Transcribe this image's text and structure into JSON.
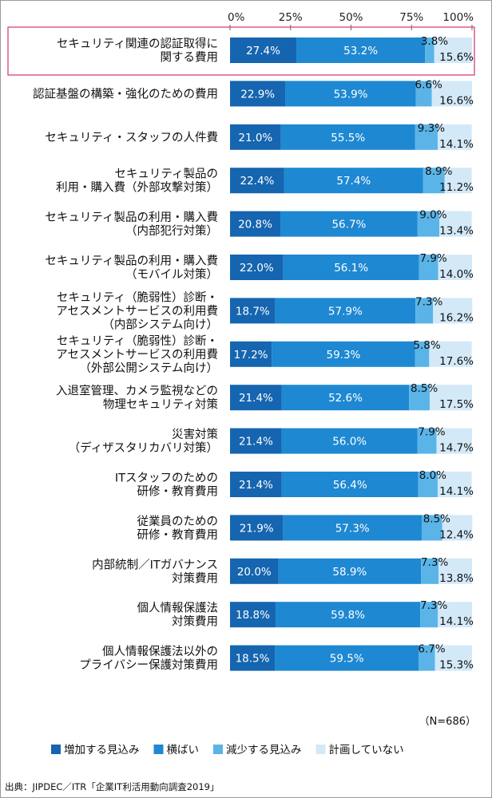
{
  "chart_data": {
    "type": "bar",
    "orientation": "horizontal",
    "stacked": true,
    "percent_scale": true,
    "xlim": [
      0,
      100
    ],
    "x_ticks": [
      "0%",
      "25%",
      "50%",
      "75%",
      "100%"
    ],
    "grid": false,
    "legend_position": "bottom",
    "categories": [
      [
        "セキュリティ関連の認証取得に",
        "関する費用"
      ],
      [
        "認証基盤の構築・強化のための費用"
      ],
      [
        "セキュリティ・スタッフの人件費"
      ],
      [
        "セキュリティ製品の",
        "利用・購入費（外部攻撃対策）"
      ],
      [
        "セキュリティ製品の利用・購入費",
        "（内部犯行対策）"
      ],
      [
        "セキュリティ製品の利用・購入費",
        "（モバイル対策）"
      ],
      [
        "セキュリティ（脆弱性）診断・",
        "アセスメントサービスの利用費",
        "（内部システム向け）"
      ],
      [
        "セキュリティ（脆弱性）診断・",
        "アセスメントサービスの利用費",
        "（外部公開システム向け）"
      ],
      [
        "入退室管理、カメラ監視などの",
        "物理セキュリティ対策"
      ],
      [
        "災害対策",
        "（ディザスタリカバリ対策）"
      ],
      [
        "ITスタッフのための",
        "研修・教育費用"
      ],
      [
        "従業員のための",
        "研修・教育費用"
      ],
      [
        "内部統制／ITガバナンス",
        "対策費用"
      ],
      [
        "個人情報保護法",
        "対策費用"
      ],
      [
        "個人情報保護法以外の",
        "プライバシー保護対策費用"
      ]
    ],
    "series": [
      {
        "name": "増加する見込み",
        "color": "#1565b0",
        "values": [
          27.4,
          22.9,
          21.0,
          22.4,
          20.8,
          22.0,
          18.7,
          17.2,
          21.4,
          21.4,
          21.4,
          21.9,
          20.0,
          18.8,
          18.5
        ],
        "labels": [
          "27.4%",
          "22.9%",
          "21.0%",
          "22.4%",
          "20.8%",
          "22.0%",
          "18.7%",
          "17.2%",
          "21.4%",
          "21.4%",
          "21.4%",
          "21.9%",
          "20.0%",
          "18.8%",
          "18.5%"
        ]
      },
      {
        "name": "横ばい",
        "color": "#1e88d2",
        "values": [
          53.2,
          53.9,
          55.5,
          57.4,
          56.7,
          56.1,
          57.9,
          59.3,
          52.6,
          56.0,
          56.4,
          57.3,
          58.9,
          59.8,
          59.5
        ],
        "labels": [
          "53.2%",
          "53.9%",
          "55.5%",
          "57.4%",
          "56.7%",
          "56.1%",
          "57.9%",
          "59.3%",
          "52.6%",
          "56.0%",
          "56.4%",
          "57.3%",
          "58.9%",
          "59.8%",
          "59.5%"
        ]
      },
      {
        "name": "減少する見込み",
        "color": "#5ab4e8",
        "values": [
          3.8,
          6.6,
          9.3,
          8.9,
          9.0,
          7.9,
          7.3,
          5.8,
          8.5,
          7.9,
          8.0,
          8.5,
          7.3,
          7.3,
          6.7
        ],
        "labels": [
          "3.8%",
          "6.6%",
          "9.3%",
          "8.9%",
          "9.0%",
          "7.9%",
          "7.3%",
          "5.8%",
          "8.5%",
          "7.9%",
          "8.0%",
          "8.5%",
          "7.3%",
          "7.3%",
          "6.7%"
        ]
      },
      {
        "name": "計画していない",
        "color": "#d3e9f8",
        "values": [
          15.6,
          16.6,
          14.1,
          11.2,
          13.4,
          14.0,
          16.2,
          17.6,
          17.5,
          14.7,
          14.1,
          12.4,
          13.8,
          14.1,
          15.3
        ],
        "labels": [
          "15.6%",
          "16.6%",
          "14.1%",
          "11.2%",
          "13.4%",
          "14.0%",
          "16.2%",
          "17.6%",
          "17.5%",
          "14.7%",
          "14.1%",
          "12.4%",
          "13.8%",
          "14.1%",
          "15.3%"
        ]
      }
    ],
    "highlight_index": 0,
    "highlight_color": "#d6417a",
    "sample_note": "（N=686）",
    "source": "出典：JIPDEC／ITR「企業IT利活用動向調査2019」"
  }
}
